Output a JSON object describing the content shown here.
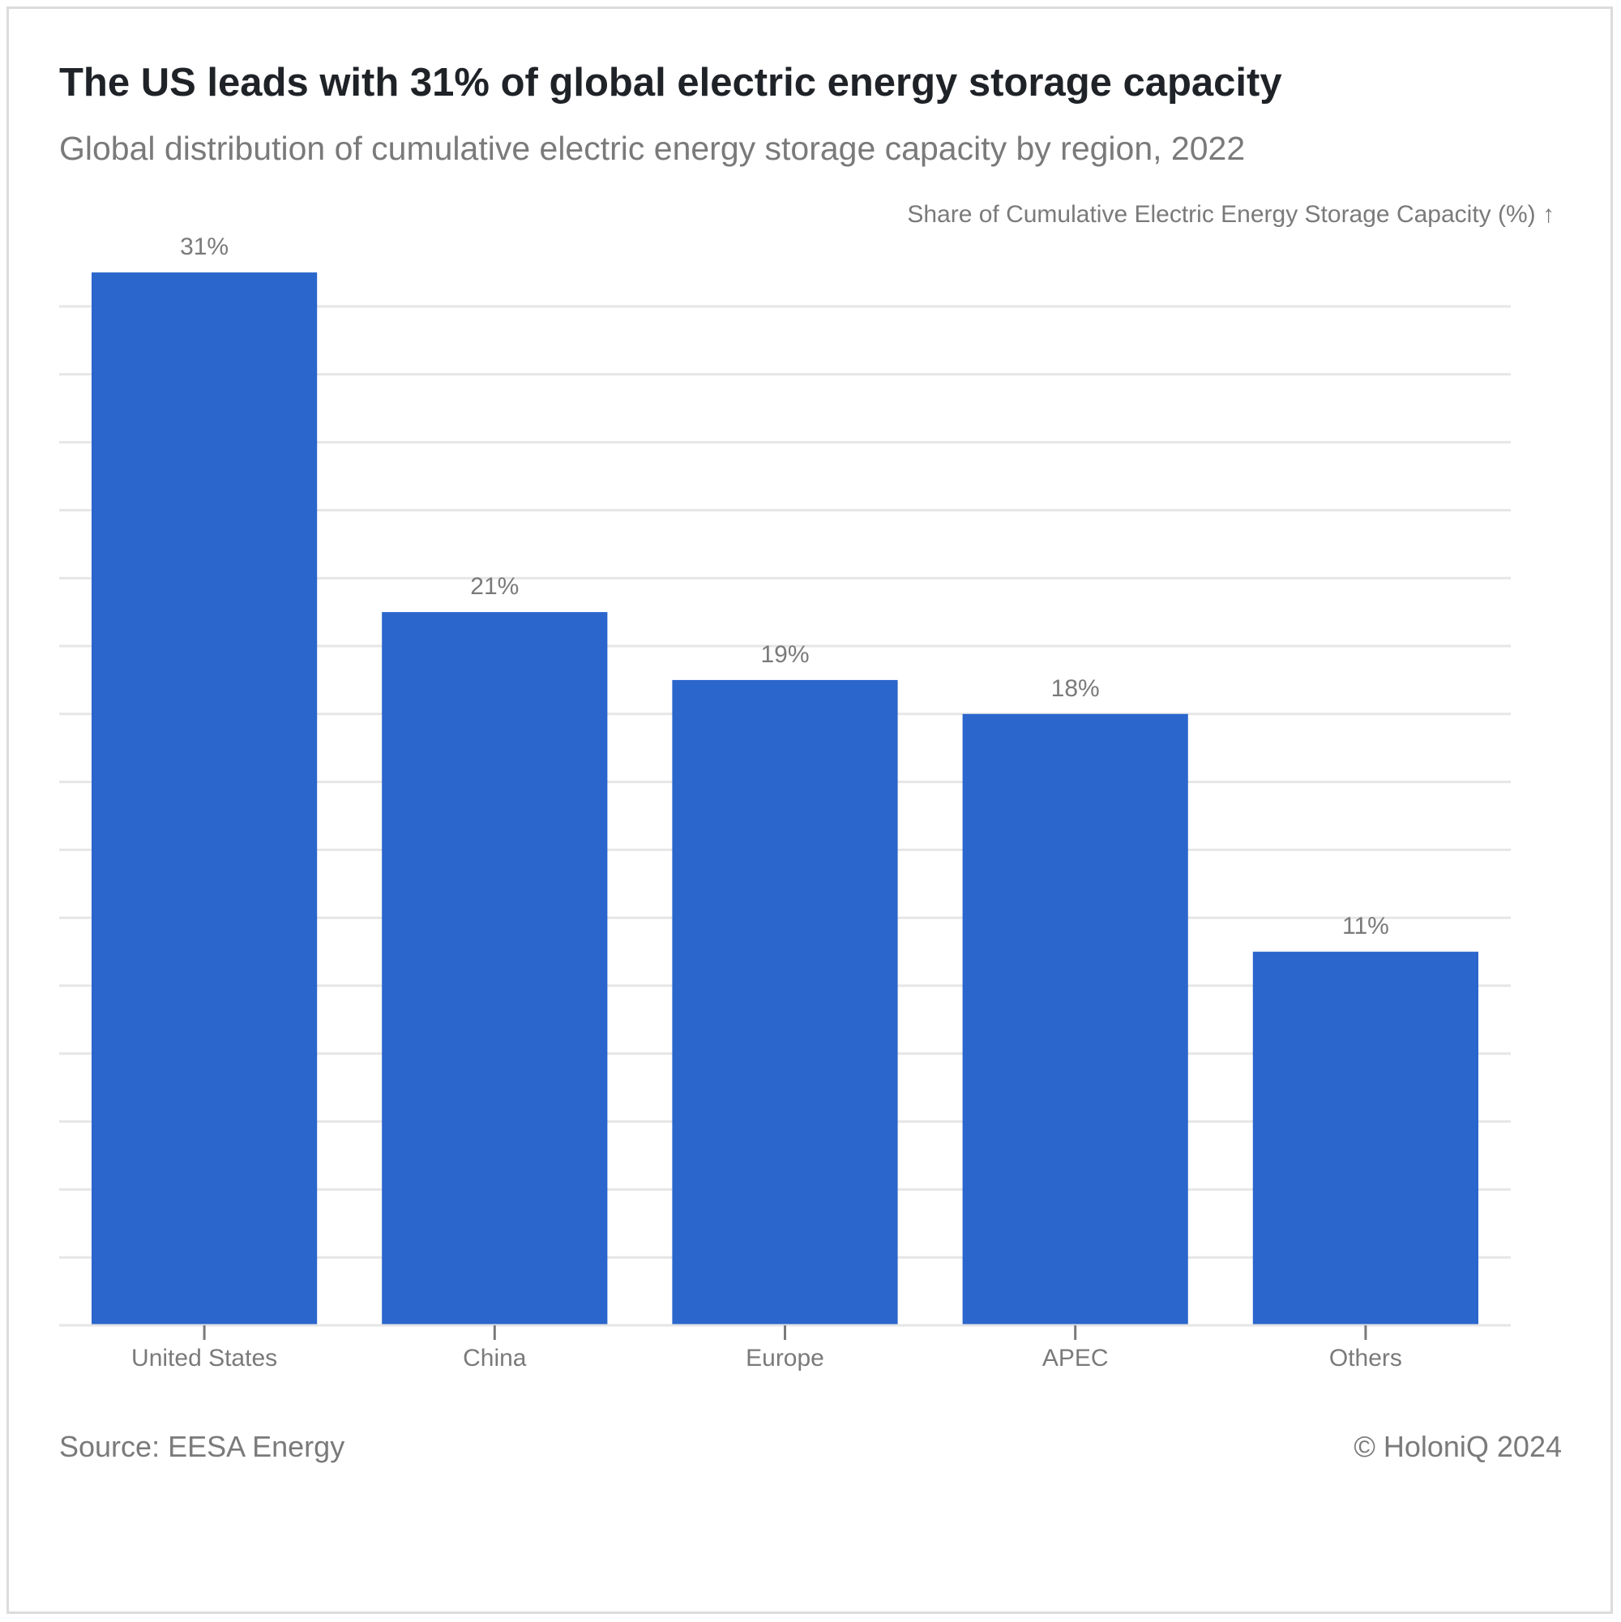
{
  "header": {
    "title": "The US leads with 31% of global electric energy storage capacity",
    "subtitle": "Global distribution of cumulative electric energy storage capacity by region, 2022"
  },
  "footer": {
    "source": "Source: EESA Energy",
    "copyright": "© HoloniQ 2024"
  },
  "chart_data": {
    "type": "bar",
    "title": "The US leads with 31% of global electric energy storage capacity",
    "subtitle": "Global distribution of cumulative electric energy storage capacity by region, 2022",
    "xlabel": "",
    "ylabel": "Share of Cumulative Electric Energy Storage Capacity (%) ↑",
    "categories": [
      "United States",
      "China",
      "Europe",
      "APEC",
      "Others"
    ],
    "values": [
      31,
      21,
      19,
      18,
      11
    ],
    "value_labels": [
      "31%",
      "21%",
      "19%",
      "18%",
      "11%"
    ],
    "ylim": [
      0,
      30
    ],
    "grid": true,
    "y_tick_labels_shown": false,
    "bar_color": "#2a66cc",
    "gridline_color": "#e6e6e6",
    "text_color": "#7a7a7a"
  }
}
